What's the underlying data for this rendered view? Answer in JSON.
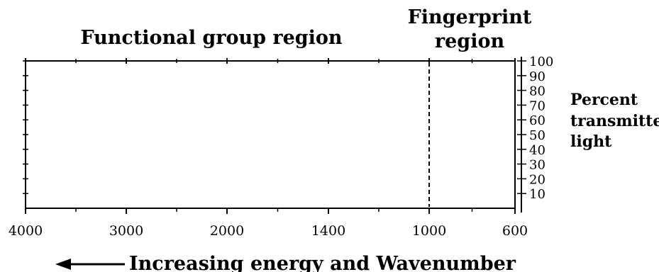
{
  "title_left": "Functional group region",
  "title_right_line1": "Fingerprint",
  "title_right_line2": "region",
  "y_axis_label": [
    "Percent",
    "transmitted",
    "light"
  ],
  "x_axis_caption": "Increasing energy  and  Wavenumber",
  "x_ticks": [
    {
      "label": "4000",
      "value": 4000
    },
    {
      "label": "3000",
      "value": 3000
    },
    {
      "label": "2000",
      "value": 2000
    },
    {
      "label": "1400",
      "value": 1400
    },
    {
      "label": "1000",
      "value": 1000
    },
    {
      "label": "600",
      "value": 600
    }
  ],
  "y_ticks": [
    "100",
    "90",
    "80",
    "70",
    "60",
    "50",
    "40",
    "30",
    "20",
    "10"
  ],
  "divider_wavenumber": 1000
}
